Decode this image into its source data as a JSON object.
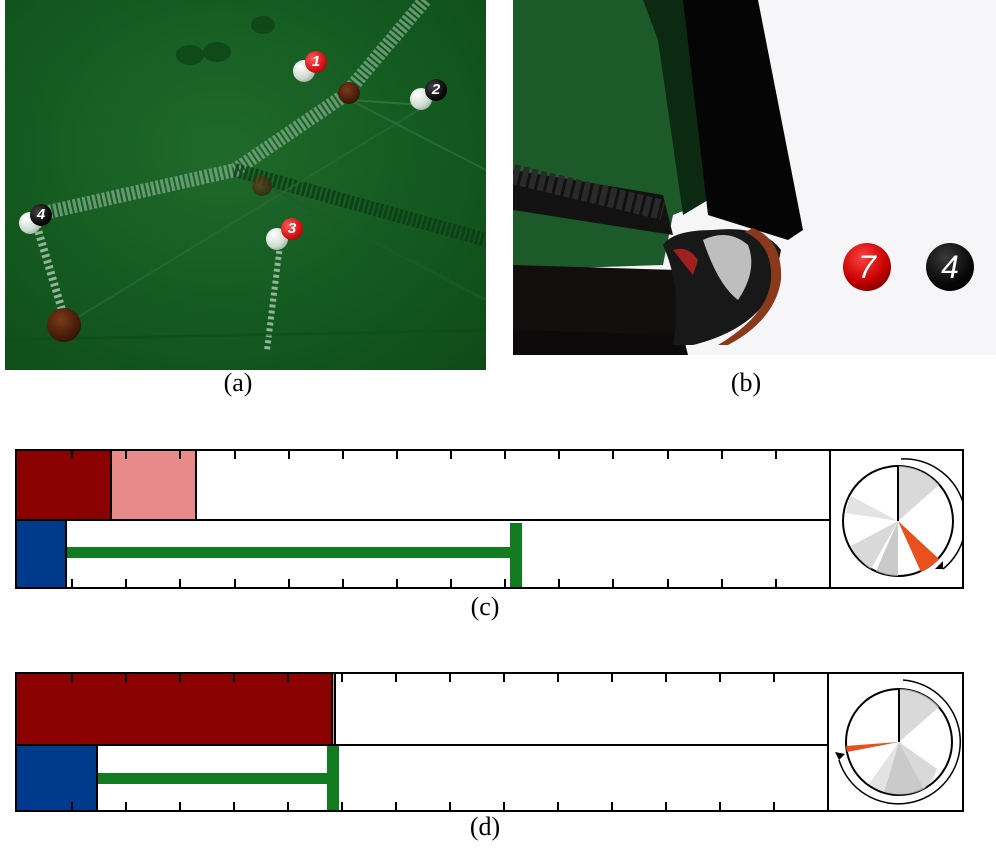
{
  "captions": {
    "a": "(a)",
    "b": "(b)",
    "c": "(c)",
    "d": "(d)"
  },
  "panel_a": {
    "balls": [
      {
        "number": "1",
        "color": "red"
      },
      {
        "number": "2",
        "color": "black"
      },
      {
        "number": "3",
        "color": "red"
      },
      {
        "number": "4",
        "color": "black"
      }
    ]
  },
  "panel_b": {
    "balls": [
      {
        "number": "7",
        "color": "red"
      },
      {
        "number": "4",
        "color": "black"
      }
    ]
  },
  "timelines": {
    "c": {
      "top_dark_red": 0.115,
      "top_light_red": 0.107,
      "blue": 0.062,
      "green_end": 0.615,
      "pie_highlight": "lower-right"
    },
    "d": {
      "top_dark_red": 0.388,
      "top_light_red": 0.006,
      "blue": 0.1,
      "green_end": 0.39,
      "pie_highlight": "left"
    }
  },
  "colors": {
    "dark_red": "#8b0000",
    "light_red": "#e88a8a",
    "blue": "#003a8c",
    "green": "#127a1f",
    "orange": "#e8501e",
    "table_green": "#145a20"
  }
}
